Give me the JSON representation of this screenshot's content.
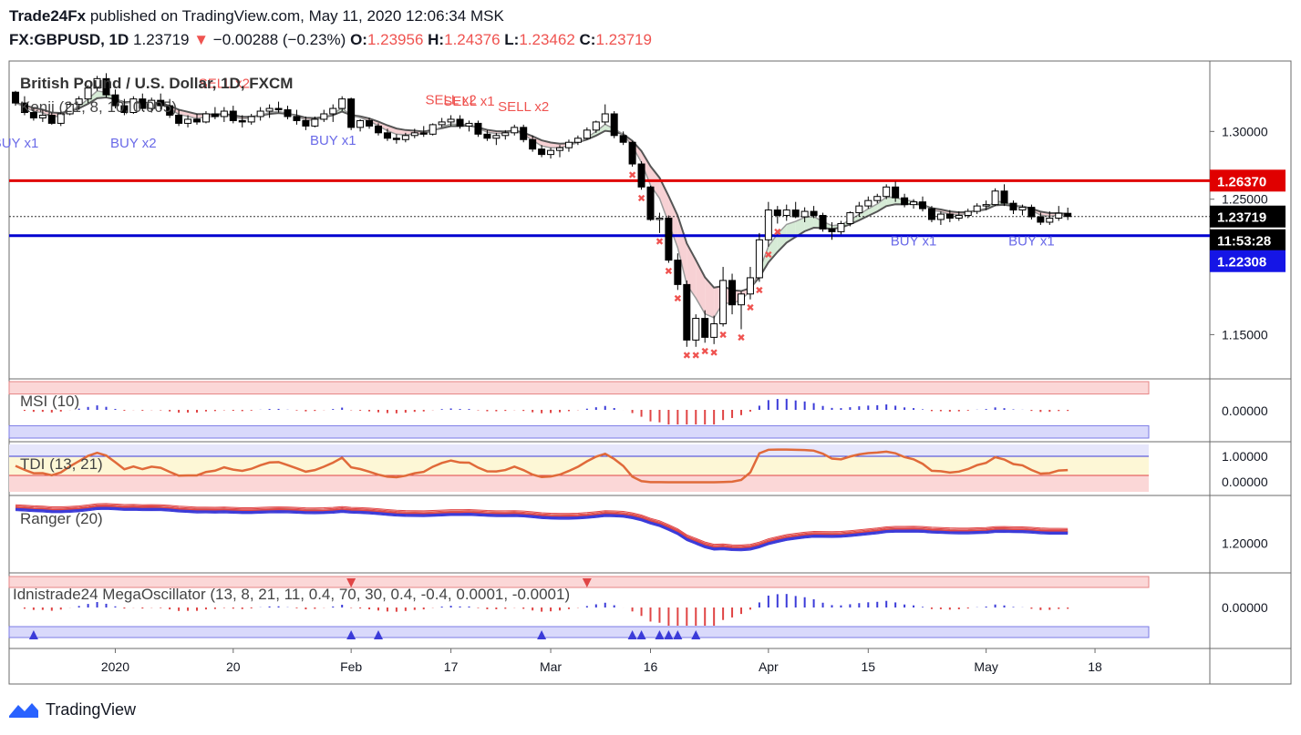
{
  "header": {
    "publisher": "Trade24Fx",
    "published_text": "published on TradingView.com, May 11, 2020 12:06:34 MSK",
    "symbol": "FX:GBPUSD, 1D",
    "last": "1.23719",
    "change": "−0.00288 (−0.23%)",
    "o_label": "O:",
    "o_value": "1.23956",
    "h_label": "H:",
    "h_value": "1.24376",
    "l_label": "L:",
    "l_value": "1.23462",
    "c_label": "C:",
    "c_value": "1.23719"
  },
  "footer": {
    "brand": "TradingView"
  },
  "colors": {
    "up": "#ffffff",
    "down": "#000000",
    "resistance": "#e00000",
    "support": "#0000d0",
    "buy": "#6a6ae8",
    "sell": "#ef5350",
    "badge_last": "#000000",
    "badge_red": "#e00000",
    "badge_blue": "#1515e6"
  },
  "chart_data": {
    "type": "candlestick",
    "title": "British Pound / U.S. Dollar, 1D, FXCM",
    "overlay_label": "Kenji (21, 8, 10, 0.005)",
    "x_ticks": [
      {
        "label": "2020",
        "i": 11
      },
      {
        "label": "20",
        "i": 24
      },
      {
        "label": "Feb",
        "i": 37
      },
      {
        "label": "17",
        "i": 48
      },
      {
        "label": "Mar",
        "i": 59
      },
      {
        "label": "16",
        "i": 70
      },
      {
        "label": "Apr",
        "i": 83
      },
      {
        "label": "15",
        "i": 94
      },
      {
        "label": "May",
        "i": 107
      },
      {
        "label": "18",
        "i": 119
      }
    ],
    "price_ticks": [
      "1.30000",
      "1.25000",
      "1.15000"
    ],
    "price_tick_values": [
      1.3,
      1.25,
      1.15
    ],
    "price_range": [
      1.118,
      1.352
    ],
    "badges": {
      "resistance": "1.26370",
      "last": "1.23719",
      "countdown": "11:53:28",
      "support": "1.22308"
    },
    "levels": {
      "resistance": 1.2637,
      "support": 1.22308,
      "last": 1.23719
    },
    "signals": [
      {
        "text": "BUY x1",
        "i": 0,
        "type": "buy",
        "y": 1.288
      },
      {
        "text": "BUY x2",
        "i": 13,
        "type": "buy",
        "y": 1.288
      },
      {
        "text": "SELL x2",
        "i": 23,
        "type": "sell",
        "y": 1.332
      },
      {
        "text": "BUY x1",
        "i": 35,
        "type": "buy",
        "y": 1.29
      },
      {
        "text": "SELL x2",
        "i": 48,
        "type": "sell",
        "y": 1.32
      },
      {
        "text": "SELL x1",
        "i": 50,
        "type": "sell",
        "y": 1.319
      },
      {
        "text": "SELL x2",
        "i": 56,
        "type": "sell",
        "y": 1.315
      },
      {
        "text": "BUY x1",
        "i": 99,
        "type": "buy",
        "y": 1.216
      },
      {
        "text": "BUY x1",
        "i": 112,
        "type": "buy",
        "y": 1.216
      }
    ],
    "candles": [
      [
        1.329,
        1.33,
        1.319,
        1.321
      ],
      [
        1.321,
        1.326,
        1.312,
        1.314
      ],
      [
        1.314,
        1.3175,
        1.308,
        1.31
      ],
      [
        1.31,
        1.316,
        1.307,
        1.312
      ],
      [
        1.312,
        1.314,
        1.305,
        1.306
      ],
      [
        1.306,
        1.315,
        1.304,
        1.313
      ],
      [
        1.313,
        1.322,
        1.312,
        1.32
      ],
      [
        1.32,
        1.326,
        1.316,
        1.324
      ],
      [
        1.324,
        1.334,
        1.321,
        1.332
      ],
      [
        1.332,
        1.341,
        1.33,
        1.339
      ],
      [
        1.339,
        1.343,
        1.325,
        1.327
      ],
      [
        1.327,
        1.331,
        1.317,
        1.319
      ],
      [
        1.319,
        1.324,
        1.312,
        1.314
      ],
      [
        1.314,
        1.326,
        1.313,
        1.324
      ],
      [
        1.324,
        1.328,
        1.315,
        1.317
      ],
      [
        1.317,
        1.325,
        1.314,
        1.323
      ],
      [
        1.323,
        1.328,
        1.316,
        1.319
      ],
      [
        1.319,
        1.324,
        1.31,
        1.312
      ],
      [
        1.312,
        1.316,
        1.304,
        1.306
      ],
      [
        1.306,
        1.312,
        1.303,
        1.309
      ],
      [
        1.309,
        1.313,
        1.305,
        1.307
      ],
      [
        1.307,
        1.315,
        1.306,
        1.313
      ],
      [
        1.313,
        1.318,
        1.309,
        1.311
      ],
      [
        1.311,
        1.318,
        1.307,
        1.315
      ],
      [
        1.315,
        1.319,
        1.306,
        1.308
      ],
      [
        1.308,
        1.312,
        1.303,
        1.307
      ],
      [
        1.307,
        1.313,
        1.305,
        1.311
      ],
      [
        1.311,
        1.318,
        1.308,
        1.315
      ],
      [
        1.315,
        1.32,
        1.31,
        1.317
      ],
      [
        1.317,
        1.322,
        1.314,
        1.316
      ],
      [
        1.316,
        1.319,
        1.309,
        1.311
      ],
      [
        1.311,
        1.316,
        1.305,
        1.308
      ],
      [
        1.308,
        1.311,
        1.301,
        1.304
      ],
      [
        1.304,
        1.311,
        1.303,
        1.309
      ],
      [
        1.309,
        1.316,
        1.307,
        1.313
      ],
      [
        1.313,
        1.32,
        1.307,
        1.317
      ],
      [
        1.317,
        1.326,
        1.315,
        1.324
      ],
      [
        1.324,
        1.325,
        1.301,
        1.303
      ],
      [
        1.303,
        1.309,
        1.3,
        1.308
      ],
      [
        1.308,
        1.31,
        1.302,
        1.304
      ],
      [
        1.304,
        1.306,
        1.297,
        1.299
      ],
      [
        1.299,
        1.302,
        1.293,
        1.295
      ],
      [
        1.295,
        1.298,
        1.291,
        1.294
      ],
      [
        1.294,
        1.299,
        1.292,
        1.297
      ],
      [
        1.297,
        1.302,
        1.295,
        1.299
      ],
      [
        1.299,
        1.304,
        1.296,
        1.298
      ],
      [
        1.298,
        1.306,
        1.297,
        1.305
      ],
      [
        1.305,
        1.31,
        1.303,
        1.307
      ],
      [
        1.307,
        1.312,
        1.304,
        1.309
      ],
      [
        1.309,
        1.312,
        1.302,
        1.304
      ],
      [
        1.304,
        1.308,
        1.3,
        1.306
      ],
      [
        1.306,
        1.308,
        1.296,
        1.298
      ],
      [
        1.298,
        1.301,
        1.293,
        1.295
      ],
      [
        1.295,
        1.299,
        1.29,
        1.297
      ],
      [
        1.297,
        1.301,
        1.294,
        1.299
      ],
      [
        1.299,
        1.305,
        1.297,
        1.303
      ],
      [
        1.303,
        1.305,
        1.292,
        1.294
      ],
      [
        1.294,
        1.297,
        1.285,
        1.287
      ],
      [
        1.287,
        1.29,
        1.281,
        1.283
      ],
      [
        1.283,
        1.288,
        1.28,
        1.286
      ],
      [
        1.286,
        1.29,
        1.281,
        1.288
      ],
      [
        1.288,
        1.294,
        1.285,
        1.292
      ],
      [
        1.292,
        1.297,
        1.29,
        1.295
      ],
      [
        1.295,
        1.303,
        1.294,
        1.301
      ],
      [
        1.301,
        1.308,
        1.299,
        1.307
      ],
      [
        1.307,
        1.32,
        1.305,
        1.313
      ],
      [
        1.313,
        1.315,
        1.295,
        1.297
      ],
      [
        1.297,
        1.3,
        1.29,
        1.292
      ],
      [
        1.292,
        1.293,
        1.274,
        1.276
      ],
      [
        1.276,
        1.278,
        1.257,
        1.259
      ],
      [
        1.259,
        1.26,
        1.234,
        1.235
      ],
      [
        1.235,
        1.24,
        1.225,
        1.236
      ],
      [
        1.236,
        1.238,
        1.203,
        1.205
      ],
      [
        1.205,
        1.21,
        1.183,
        1.187
      ],
      [
        1.187,
        1.19,
        1.141,
        1.146
      ],
      [
        1.146,
        1.165,
        1.141,
        1.162
      ],
      [
        1.162,
        1.168,
        1.144,
        1.148
      ],
      [
        1.148,
        1.164,
        1.143,
        1.158
      ],
      [
        1.158,
        1.2,
        1.156,
        1.19
      ],
      [
        1.19,
        1.195,
        1.165,
        1.172
      ],
      [
        1.172,
        1.182,
        1.154,
        1.18
      ],
      [
        1.18,
        1.2,
        1.176,
        1.192
      ],
      [
        1.192,
        1.225,
        1.189,
        1.22
      ],
      [
        1.22,
        1.248,
        1.215,
        1.242
      ],
      [
        1.242,
        1.245,
        1.232,
        1.238
      ],
      [
        1.238,
        1.246,
        1.234,
        1.242
      ],
      [
        1.242,
        1.248,
        1.236,
        1.237
      ],
      [
        1.237,
        1.244,
        1.233,
        1.241
      ],
      [
        1.241,
        1.245,
        1.236,
        1.238
      ],
      [
        1.238,
        1.24,
        1.226,
        1.228
      ],
      [
        1.228,
        1.233,
        1.22,
        1.226
      ],
      [
        1.226,
        1.234,
        1.224,
        1.232
      ],
      [
        1.232,
        1.241,
        1.23,
        1.24
      ],
      [
        1.24,
        1.248,
        1.237,
        1.245
      ],
      [
        1.245,
        1.252,
        1.243,
        1.249
      ],
      [
        1.249,
        1.254,
        1.247,
        1.252
      ],
      [
        1.252,
        1.261,
        1.25,
        1.259
      ],
      [
        1.259,
        1.263,
        1.248,
        1.251
      ],
      [
        1.251,
        1.254,
        1.244,
        1.246
      ],
      [
        1.246,
        1.25,
        1.243,
        1.248
      ],
      [
        1.248,
        1.252,
        1.241,
        1.243
      ],
      [
        1.243,
        1.245,
        1.233,
        1.235
      ],
      [
        1.235,
        1.241,
        1.231,
        1.239
      ],
      [
        1.239,
        1.242,
        1.233,
        1.236
      ],
      [
        1.236,
        1.241,
        1.234,
        1.238
      ],
      [
        1.238,
        1.243,
        1.236,
        1.241
      ],
      [
        1.241,
        1.247,
        1.239,
        1.245
      ],
      [
        1.245,
        1.249,
        1.242,
        1.246
      ],
      [
        1.246,
        1.258,
        1.245,
        1.256
      ],
      [
        1.256,
        1.261,
        1.245,
        1.247
      ],
      [
        1.247,
        1.249,
        1.239,
        1.242
      ],
      [
        1.242,
        1.246,
        1.238,
        1.244
      ],
      [
        1.244,
        1.246,
        1.235,
        1.237
      ],
      [
        1.237,
        1.24,
        1.231,
        1.233
      ],
      [
        1.233,
        1.241,
        1.231,
        1.236
      ],
      [
        1.236,
        1.245,
        1.234,
        1.2396
      ],
      [
        1.23956,
        1.24376,
        1.23462,
        1.23719
      ]
    ],
    "panels": {
      "msi": {
        "label": "MSI (10)",
        "tick": "0.00000"
      },
      "tdi": {
        "label": "TDI (13, 21)",
        "ticks": [
          "1.00000",
          "0.00000"
        ]
      },
      "ranger": {
        "label": "Ranger (20)",
        "tick": "1.20000"
      },
      "mega": {
        "label": "Idnistrade24 MegaOscillator (13, 8, 21, 11, 0.4, 70, 30, 0.4, -0.4, 0.0001, -0.0001)",
        "tick": "0.00000",
        "arrows_up": [
          2,
          37,
          40,
          58,
          68,
          69,
          71,
          72,
          73,
          75
        ],
        "arrows_down": [
          37,
          63
        ]
      }
    }
  }
}
